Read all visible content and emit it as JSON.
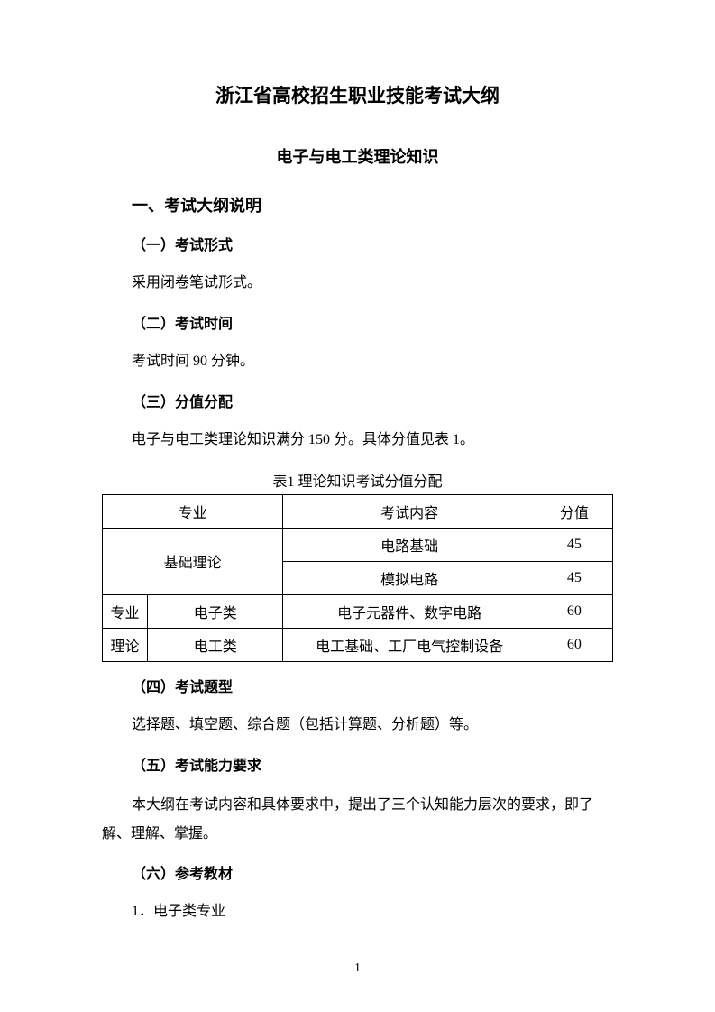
{
  "main_title": "浙江省高校招生职业技能考试大纲",
  "subtitle": "电子与电工类理论知识",
  "section1": {
    "heading": "一、考试大纲说明",
    "sub1": {
      "heading": "（一）考试形式",
      "text": "采用闭卷笔试形式。"
    },
    "sub2": {
      "heading": "（二）考试时间",
      "text": "考试时间 90 分钟。"
    },
    "sub3": {
      "heading": "（三）分值分配",
      "text": "电子与电工类理论知识满分 150 分。具体分值见表 1。",
      "table_caption": "表1   理论知识考试分值分配",
      "table": {
        "headers": {
          "major": "专业",
          "content": "考试内容",
          "score": "分值"
        },
        "rows": [
          {
            "category": "基础理论",
            "content": "电路基础",
            "score": "45"
          },
          {
            "content": "模拟电路",
            "score": "45"
          },
          {
            "major_col": "专业",
            "category": "电子类",
            "content": "电子元器件、数字电路",
            "score": "60"
          },
          {
            "major_col": "理论",
            "category": "电工类",
            "content": "电工基础、工厂电气控制设备",
            "score": "60"
          }
        ]
      }
    },
    "sub4": {
      "heading": "（四）考试题型",
      "text": "选择题、填空题、综合题（包括计算题、分析题）等。"
    },
    "sub5": {
      "heading": "（五）考试能力要求",
      "text": "本大纲在考试内容和具体要求中，提出了三个认知能力层次的要求，即了解、理解、掌握。"
    },
    "sub6": {
      "heading": "（六）参考教材",
      "item1": "1．电子类专业"
    }
  },
  "page_number": "1"
}
